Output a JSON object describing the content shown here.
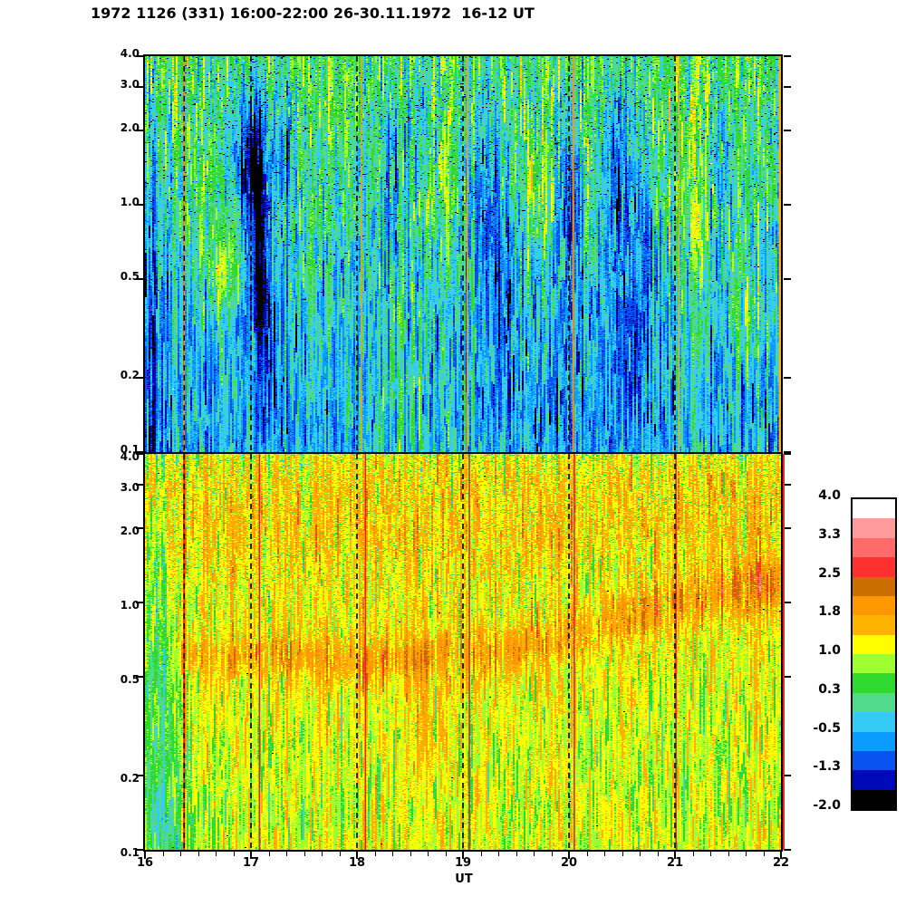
{
  "chart_data": {
    "type": "heatmap",
    "title": "1972 1126 (331) 16:00-22:00 26-30.11.1972  16-12 UT",
    "x": {
      "label": "UT",
      "range": [
        16,
        22
      ],
      "major_ticks": [
        16,
        17,
        18,
        19,
        20,
        21,
        22
      ],
      "major_tick_labels": [
        "16",
        "17",
        "18",
        "19",
        "20",
        "21",
        "22"
      ],
      "minor_ticks_per_hour": 6
    },
    "y": {
      "scale": "log",
      "range": [
        0.1,
        4.0
      ],
      "major_ticks": [
        4.0,
        3.0,
        2.0,
        1.0,
        0.5,
        0.2,
        0.1
      ],
      "tick_labels": [
        "4.0",
        "3.0",
        "2.0",
        "1.0",
        "0.5",
        "0.2",
        "0.1"
      ]
    },
    "value_scale": {
      "min": -2.0,
      "max": 4.0,
      "bands": 16,
      "step_per_band": 0.375,
      "labels": [
        "4.0",
        "3.3",
        "2.5",
        "1.8",
        "1.0",
        "0.3",
        "-0.5",
        "-1.3",
        "-2.0"
      ],
      "palette_top_to_bottom": [
        "#FFFFFF",
        "#FF9B9B",
        "#FF6B6B",
        "#FF3030",
        "#CC6D00",
        "#FF9800",
        "#FFB300",
        "#FFFF00",
        "#9FFF30",
        "#2FD92F",
        "#52DA8C",
        "#35CBF7",
        "#0A9CFF",
        "#0853F0",
        "#0009B8",
        "#000000"
      ]
    },
    "gridline_dash": [
      6,
      5
    ],
    "panels": [
      {
        "name": "top",
        "description": "Upper spectrogram: green at high frequencies grading to cyan/blue at low frequencies, with dark-blue vertical plumes near 17:00, 18:20, 19:15, 20:00 and 20:30.",
        "seed": 90211,
        "base_profile": [
          [
            0,
            0.42
          ],
          [
            0.1,
            0.36
          ],
          [
            0.2,
            0.3
          ],
          [
            0.3,
            0.22
          ],
          [
            0.42,
            0.12
          ],
          [
            0.52,
            -0.05
          ],
          [
            0.62,
            -0.22
          ],
          [
            0.75,
            -0.4
          ],
          [
            0.9,
            -0.5
          ],
          [
            1,
            -0.5
          ]
        ],
        "blobs": [
          [
            16.05,
            0.75,
            0.22,
            0.45,
            -0.55
          ],
          [
            16.1,
            0.45,
            0.15,
            0.3,
            -0.35
          ],
          [
            16.55,
            0.3,
            0.12,
            0.1,
            0.5
          ],
          [
            16.7,
            0.54,
            0.2,
            0.1,
            0.8
          ],
          [
            16.95,
            0.2,
            0.28,
            0.16,
            -0.6
          ],
          [
            17.05,
            0.32,
            0.13,
            0.22,
            -1.8
          ],
          [
            17.1,
            0.56,
            0.1,
            0.16,
            -1.2
          ],
          [
            17.15,
            0.78,
            0.08,
            0.22,
            -0.9
          ],
          [
            17.35,
            0.25,
            0.1,
            0.15,
            -0.6
          ],
          [
            17.9,
            0.1,
            0.22,
            0.08,
            0.35
          ],
          [
            18.35,
            0.3,
            0.11,
            0.22,
            -0.95
          ],
          [
            18.3,
            0.9,
            0.5,
            0.25,
            0.3
          ],
          [
            18.6,
            0.2,
            0.1,
            0.14,
            -0.5
          ],
          [
            18.75,
            0.35,
            0.12,
            0.09,
            0.45
          ],
          [
            19.25,
            0.35,
            0.18,
            0.3,
            -1.1
          ],
          [
            19.4,
            0.62,
            0.1,
            0.2,
            -0.7
          ],
          [
            19.7,
            0.33,
            0.12,
            0.1,
            0.55
          ],
          [
            19.95,
            0.85,
            0.45,
            0.3,
            -0.3
          ],
          [
            20.0,
            0.35,
            0.12,
            0.26,
            -1.0
          ],
          [
            20.5,
            0.32,
            0.2,
            0.26,
            -1.15
          ],
          [
            20.6,
            0.72,
            0.12,
            0.2,
            -0.6
          ],
          [
            20.78,
            0.52,
            0.1,
            0.18,
            -0.7
          ],
          [
            21.2,
            0.42,
            0.15,
            0.12,
            0.5
          ],
          [
            21.45,
            0.28,
            0.18,
            0.18,
            -0.45
          ],
          [
            21.7,
            0.65,
            0.16,
            0.12,
            0.45
          ]
        ],
        "noise": {
          "streak": 0.26,
          "run": 0.36,
          "pixel": 0.2,
          "fleck_prob": 0.07,
          "fleck_amp": -1.3,
          "fleck_spread": 0.7,
          "fleck_taper": 1.5,
          "extreme_prob": 0.0005
        },
        "gridlines": [
          17,
          18,
          19,
          20,
          21
        ],
        "event_lines": [
          {
            "x": 16.37,
            "color": "#FF8800",
            "width": 2,
            "black_dash_overlay": true
          },
          {
            "x": 18.04,
            "color": "#FFA000",
            "width": 1.3
          },
          {
            "x": 19.04,
            "color": "#FFA000",
            "width": 1.6
          },
          {
            "x": 20.04,
            "color": "#FF9900",
            "width": 2
          },
          {
            "x": 21.04,
            "color": "#FFAA00",
            "width": 1.3
          },
          {
            "x": 21.99,
            "color": "#FFB300",
            "width": 2.5
          }
        ]
      },
      {
        "name": "bottom",
        "description": "Lower spectrogram: orange/amber at high frequencies over yellow, a dark-orange band near 0.5-0.7 rising toward 1.0 after 20:00, green column before 16:22.",
        "seed": 51873,
        "base_profile": [
          [
            0,
            1.18
          ],
          [
            0.07,
            1.4
          ],
          [
            0.18,
            1.5
          ],
          [
            0.3,
            1.3
          ],
          [
            0.45,
            1.15
          ],
          [
            0.6,
            1.1
          ],
          [
            0.75,
            1.02
          ],
          [
            0.9,
            1.0
          ],
          [
            1,
            1.05
          ]
        ],
        "blobs": [
          [
            16.7,
            0.52,
            0.42,
            0.055,
            0.55
          ],
          [
            17.35,
            0.5,
            0.42,
            0.055,
            0.55
          ],
          [
            18.0,
            0.53,
            0.42,
            0.055,
            0.55
          ],
          [
            18.65,
            0.51,
            0.42,
            0.055,
            0.55
          ],
          [
            19.3,
            0.5,
            0.42,
            0.055,
            0.55
          ],
          [
            19.95,
            0.46,
            0.42,
            0.055,
            0.55
          ],
          [
            20.55,
            0.42,
            0.42,
            0.06,
            0.55
          ],
          [
            21.15,
            0.37,
            0.45,
            0.07,
            0.6
          ],
          [
            21.7,
            0.34,
            0.45,
            0.07,
            0.6
          ],
          [
            22.05,
            0.33,
            0.3,
            0.07,
            0.6
          ],
          [
            18.6,
            0.65,
            0.15,
            0.18,
            0.35
          ],
          [
            16.1,
            0.6,
            0.2,
            0.55,
            -0.85
          ],
          [
            16.3,
            0.95,
            0.3,
            0.12,
            -0.5
          ],
          [
            21.5,
            0.15,
            0.5,
            0.15,
            0.2
          ]
        ],
        "noise": {
          "streak": 0.2,
          "run": 0.3,
          "pixel": 0.18,
          "fleck_prob": 0.2,
          "fleck_amp": -0.6,
          "fleck_spread": 0.35,
          "fleck_taper": 1.6,
          "extreme_prob": 0.0003
        },
        "gridlines": [
          17,
          18,
          19,
          20,
          21
        ],
        "event_lines": [
          {
            "x": 16.37,
            "color": "#F02020",
            "width": 2,
            "black_dash_overlay": true
          },
          {
            "x": 17.08,
            "color": "#F02020",
            "width": 1.6
          },
          {
            "x": 18.08,
            "color": "#F02020",
            "width": 1.6
          },
          {
            "x": 19.06,
            "color": "#F02020",
            "width": 1.6
          },
          {
            "x": 20.05,
            "color": "#F02020",
            "width": 1.6
          },
          {
            "x": 21.01,
            "color": "#F02020",
            "width": 1.6
          }
        ],
        "right_edge_strip": {
          "color": "#F02020",
          "width": 2
        }
      }
    ]
  }
}
